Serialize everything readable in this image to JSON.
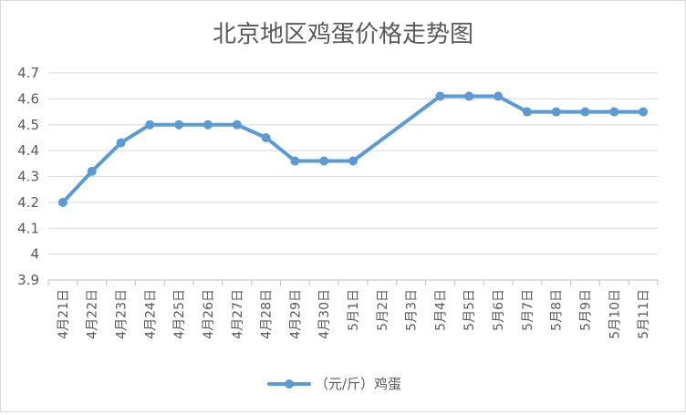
{
  "chart_data": {
    "type": "line",
    "title": "北京地区鸡蛋价格走势图",
    "xlabel": "",
    "ylabel": "",
    "ylim": [
      3.9,
      4.7
    ],
    "yticks": [
      "3.9",
      "4",
      "4.1",
      "4.2",
      "4.3",
      "4.4",
      "4.5",
      "4.6",
      "4.7"
    ],
    "grid": true,
    "legend_position": "bottom",
    "categories": [
      "4月21日",
      "4月22日",
      "4月23日",
      "4月24日",
      "4月25日",
      "4月26日",
      "4月27日",
      "4月28日",
      "4月29日",
      "4月30日",
      "5月1日",
      "5月2日",
      "5月3日",
      "5月4日",
      "5月5日",
      "5月6日",
      "5月7日",
      "5月8日",
      "5月9日",
      "5月10日",
      "5月11日"
    ],
    "series": [
      {
        "name": "（元/斤）鸡蛋",
        "color": "#5b9bd5",
        "values": [
          4.2,
          4.32,
          4.43,
          4.5,
          4.5,
          4.5,
          4.5,
          4.45,
          4.36,
          4.36,
          4.36,
          null,
          null,
          4.61,
          4.61,
          4.61,
          4.55,
          4.55,
          4.55,
          4.55,
          4.55
        ]
      }
    ]
  }
}
